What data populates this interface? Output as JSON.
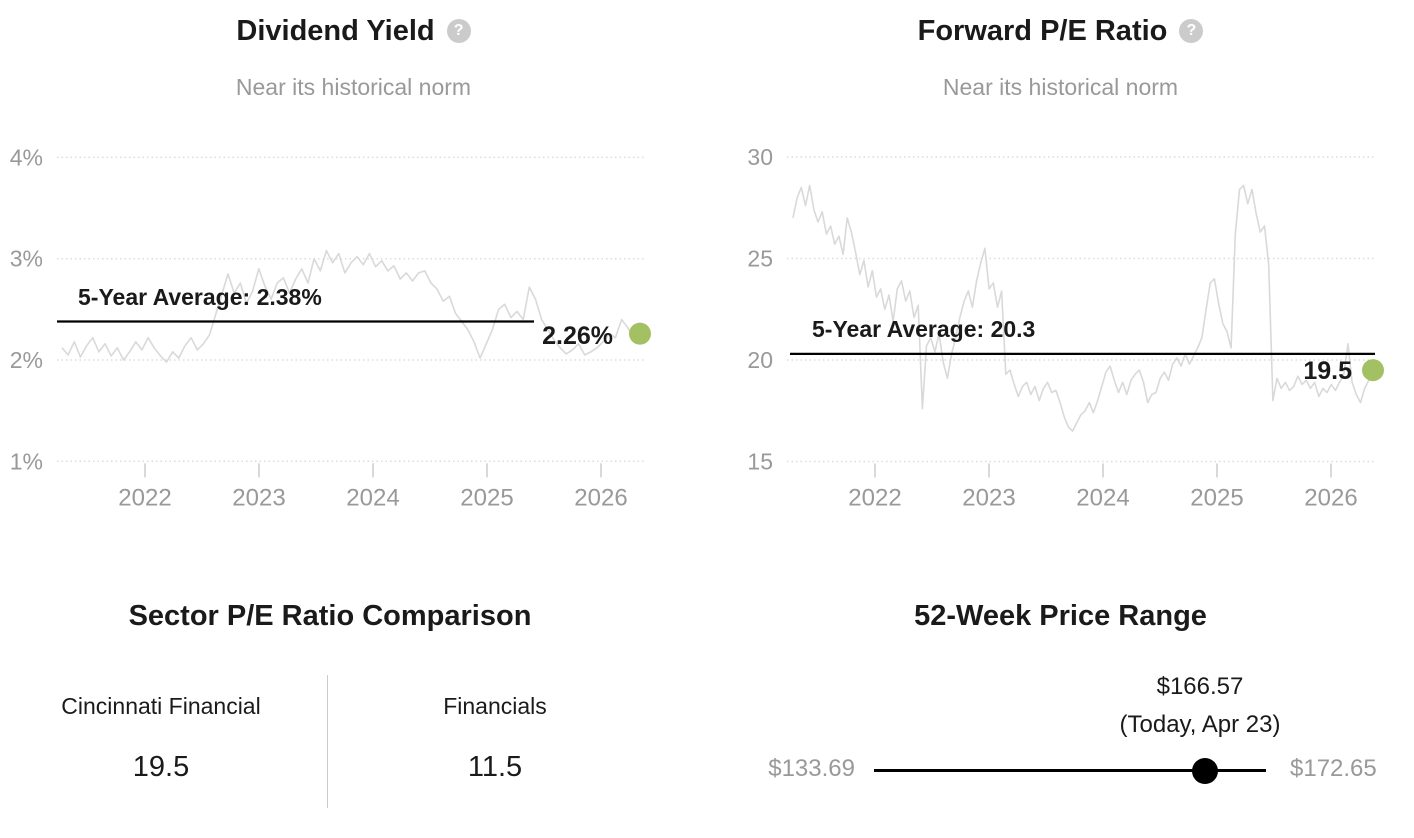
{
  "accent_color": "#a3c162",
  "help_glyph": "?",
  "chart_data": [
    {
      "type": "line",
      "title": "Dividend Yield",
      "subtitle": "Near its historical norm",
      "unit": "%",
      "x_tick_labels": [
        "2022",
        "2023",
        "2024",
        "2025",
        "2026"
      ],
      "y_ticks": [
        {
          "label": "4%",
          "value": 4
        },
        {
          "label": "3%",
          "value": 3
        },
        {
          "label": "2%",
          "value": 2
        },
        {
          "label": "1%",
          "value": 1
        }
      ],
      "ylim": [
        0.8,
        4.3
      ],
      "grid": "dotted",
      "five_year_average": 2.38,
      "average_label": "5-Year Average: 2.38%",
      "current_value": 2.26,
      "current_label": "2.26%",
      "line_color": "#d9d9d9",
      "average_line_color": "#000000",
      "dot_color": "#a3c162",
      "values": [
        2.12,
        2.05,
        2.18,
        2.03,
        2.14,
        2.22,
        2.08,
        2.16,
        2.04,
        2.12,
        2.0,
        2.08,
        2.18,
        2.1,
        2.22,
        2.12,
        2.04,
        1.98,
        2.08,
        2.02,
        2.14,
        2.22,
        2.1,
        2.16,
        2.25,
        2.45,
        2.65,
        2.85,
        2.66,
        2.76,
        2.56,
        2.68,
        2.9,
        2.73,
        2.6,
        2.76,
        2.81,
        2.66,
        2.8,
        2.9,
        2.76,
        3.0,
        2.88,
        3.08,
        2.96,
        3.05,
        2.86,
        2.96,
        3.02,
        2.94,
        3.05,
        2.92,
        2.98,
        2.88,
        2.93,
        2.8,
        2.86,
        2.78,
        2.86,
        2.88,
        2.76,
        2.7,
        2.58,
        2.63,
        2.46,
        2.38,
        2.3,
        2.18,
        2.02,
        2.16,
        2.3,
        2.5,
        2.55,
        2.42,
        2.48,
        2.4,
        2.72,
        2.6,
        2.4,
        2.3,
        2.2,
        2.12,
        2.06,
        2.1,
        2.16,
        2.05,
        2.08,
        2.12,
        2.18,
        2.26,
        2.22,
        2.4,
        2.32,
        2.22,
        2.26
      ]
    },
    {
      "type": "line",
      "title": "Forward P/E Ratio",
      "subtitle": "Near its historical norm",
      "unit": "x",
      "x_tick_labels": [
        "2022",
        "2023",
        "2024",
        "2025",
        "2026"
      ],
      "y_ticks": [
        {
          "label": "30",
          "value": 30
        },
        {
          "label": "25",
          "value": 25
        },
        {
          "label": "20",
          "value": 20
        },
        {
          "label": "15",
          "value": 15
        }
      ],
      "ylim": [
        13.8,
        31.3
      ],
      "grid": "dotted",
      "five_year_average": 20.3,
      "average_label": "5-Year Average: 20.3",
      "current_value": 19.5,
      "current_label": "19.5",
      "line_color": "#d9d9d9",
      "average_line_color": "#000000",
      "dot_color": "#a3c162",
      "values": [
        27.0,
        28.0,
        28.5,
        27.6,
        28.6,
        27.4,
        26.8,
        27.3,
        26.2,
        26.6,
        25.7,
        26.1,
        25.2,
        27.0,
        26.3,
        25.3,
        24.2,
        24.9,
        23.6,
        24.4,
        23.1,
        23.5,
        22.5,
        23.2,
        21.9,
        23.5,
        23.9,
        22.9,
        23.4,
        22.1,
        22.7,
        17.6,
        20.7,
        21.1,
        20.4,
        21.3,
        19.9,
        19.1,
        20.3,
        21.1,
        22.1,
        22.9,
        23.4,
        22.6,
        23.9,
        24.8,
        25.5,
        23.5,
        23.8,
        22.6,
        23.4,
        19.3,
        19.5,
        18.8,
        18.2,
        18.7,
        18.9,
        18.3,
        18.7,
        18.0,
        18.6,
        18.9,
        18.4,
        18.5,
        17.9,
        17.2,
        16.7,
        16.5,
        16.9,
        17.3,
        17.5,
        17.9,
        17.4,
        18.0,
        18.7,
        19.4,
        19.7,
        19.0,
        18.4,
        18.9,
        18.3,
        19.0,
        19.3,
        19.5,
        18.9,
        17.9,
        18.3,
        18.4,
        19.1,
        19.4,
        19.0,
        19.8,
        20.1,
        19.7,
        20.3,
        19.8,
        20.2,
        20.6,
        21.1,
        22.5,
        23.8,
        24.0,
        22.8,
        21.8,
        21.4,
        20.6,
        26.2,
        28.4,
        28.6,
        27.7,
        28.4,
        27.2,
        26.3,
        26.6,
        24.7,
        18.0,
        19.1,
        18.6,
        18.9,
        18.5,
        18.7,
        19.2,
        18.8,
        19.0,
        18.6,
        18.9,
        18.2,
        18.6,
        18.4,
        18.8,
        18.5,
        18.9,
        19.3,
        20.8,
        18.9,
        18.3,
        17.9,
        18.6,
        19.0,
        19.5
      ]
    },
    {
      "type": "table",
      "title": "Sector P/E Ratio Comparison",
      "columns": [
        {
          "label": "Cincinnati Financial",
          "value": "19.5"
        },
        {
          "label": "Financials",
          "value": "11.5"
        }
      ]
    },
    {
      "type": "range",
      "title": "52-Week Price Range",
      "low": 133.69,
      "high": 172.65,
      "current": 166.57,
      "low_label": "$133.69",
      "high_label": "$172.65",
      "current_label": "$166.57",
      "current_sublabel": "(Today, Apr 23)"
    }
  ]
}
